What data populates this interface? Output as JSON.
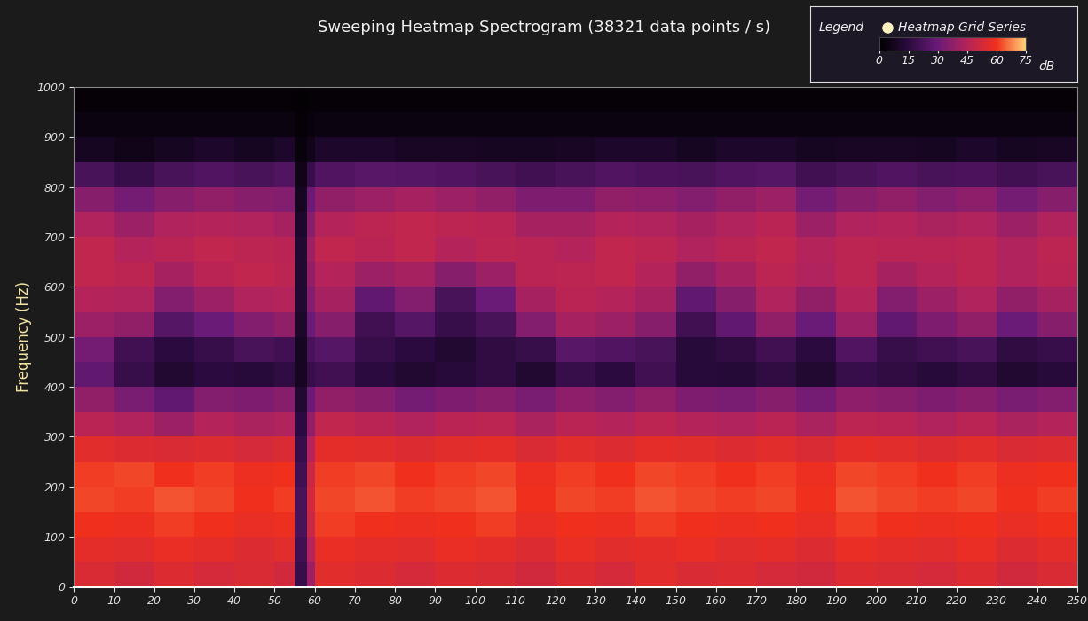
{
  "chart_data": {
    "type": "heatmap",
    "title": "Sweeping Heatmap Spectrogram (38321 data points / s)",
    "y_label": "Frequency (Hz)",
    "xlim": [
      0,
      250
    ],
    "ylim": [
      0,
      1000
    ],
    "xticks": [
      0,
      10,
      20,
      30,
      40,
      50,
      60,
      70,
      80,
      90,
      100,
      110,
      120,
      130,
      140,
      150,
      160,
      170,
      180,
      190,
      200,
      210,
      220,
      230,
      240,
      250
    ],
    "yticks": [
      0,
      100,
      200,
      300,
      400,
      500,
      600,
      700,
      800,
      900,
      1000
    ],
    "legend_title": "Legend",
    "series": [
      {
        "name": "Heatmap Grid Series"
      }
    ],
    "colorbar": {
      "range": [
        0,
        75
      ],
      "ticks": [
        0,
        15,
        30,
        45,
        60,
        75
      ],
      "label": "dB"
    },
    "x_edges": [
      0,
      10,
      20,
      30,
      40,
      50,
      55,
      58,
      60,
      70,
      80,
      90,
      100,
      110,
      120,
      130,
      140,
      150,
      160,
      170,
      180,
      190,
      200,
      210,
      220,
      230,
      240,
      250
    ],
    "y_edges": [
      0,
      50,
      100,
      150,
      200,
      250,
      300,
      350,
      400,
      450,
      500,
      550,
      600,
      650,
      700,
      750,
      800,
      850,
      900,
      950,
      1000
    ],
    "cells": [
      [
        54,
        52,
        55,
        53,
        54,
        52,
        18,
        40,
        56,
        55,
        53,
        55,
        54,
        52,
        55,
        53,
        56,
        54,
        55,
        53,
        52,
        55,
        54,
        53,
        55,
        52,
        54
      ],
      [
        57,
        56,
        58,
        57,
        55,
        56,
        20,
        45,
        58,
        57,
        56,
        58,
        57,
        55,
        58,
        56,
        57,
        58,
        56,
        57,
        55,
        58,
        57,
        56,
        58,
        55,
        57
      ],
      [
        60,
        59,
        61,
        60,
        58,
        59,
        22,
        50,
        61,
        60,
        59,
        60,
        61,
        58,
        60,
        59,
        61,
        60,
        59,
        60,
        58,
        61,
        60,
        59,
        60,
        58,
        60
      ],
      [
        62,
        61,
        63,
        62,
        60,
        61,
        22,
        52,
        62,
        63,
        61,
        62,
        63,
        60,
        62,
        61,
        63,
        62,
        61,
        62,
        60,
        63,
        62,
        61,
        62,
        60,
        61
      ],
      [
        61,
        62,
        60,
        61,
        59,
        60,
        20,
        50,
        61,
        62,
        60,
        61,
        62,
        59,
        61,
        60,
        62,
        61,
        60,
        61,
        59,
        62,
        61,
        60,
        61,
        59,
        60
      ],
      [
        56,
        55,
        54,
        55,
        53,
        54,
        18,
        45,
        57,
        56,
        55,
        56,
        57,
        54,
        56,
        55,
        57,
        56,
        55,
        56,
        54,
        57,
        56,
        55,
        56,
        54,
        55
      ],
      [
        46,
        44,
        40,
        45,
        43,
        44,
        15,
        38,
        48,
        46,
        44,
        46,
        47,
        43,
        46,
        45,
        47,
        45,
        44,
        46,
        43,
        47,
        46,
        44,
        46,
        43,
        45
      ],
      [
        38,
        33,
        28,
        35,
        34,
        36,
        12,
        30,
        38,
        36,
        32,
        34,
        36,
        33,
        37,
        35,
        38,
        34,
        33,
        36,
        32,
        37,
        36,
        34,
        36,
        33,
        35
      ],
      [
        28,
        18,
        12,
        15,
        14,
        16,
        8,
        18,
        20,
        15,
        12,
        14,
        16,
        12,
        18,
        15,
        20,
        14,
        13,
        16,
        12,
        18,
        16,
        14,
        16,
        12,
        14
      ],
      [
        32,
        20,
        15,
        18,
        22,
        20,
        8,
        22,
        25,
        18,
        15,
        12,
        16,
        18,
        26,
        24,
        22,
        14,
        16,
        20,
        15,
        24,
        18,
        20,
        22,
        16,
        18
      ],
      [
        40,
        38,
        25,
        30,
        35,
        38,
        10,
        30,
        36,
        20,
        25,
        18,
        22,
        35,
        42,
        40,
        36,
        20,
        28,
        38,
        30,
        40,
        28,
        34,
        38,
        30,
        36
      ],
      [
        45,
        44,
        35,
        40,
        44,
        45,
        12,
        35,
        42,
        28,
        35,
        22,
        30,
        42,
        46,
        45,
        42,
        28,
        36,
        44,
        38,
        45,
        35,
        40,
        44,
        38,
        42
      ],
      [
        48,
        47,
        42,
        46,
        48,
        47,
        12,
        38,
        45,
        40,
        42,
        36,
        40,
        46,
        47,
        48,
        45,
        38,
        42,
        47,
        44,
        47,
        42,
        45,
        47,
        44,
        46
      ],
      [
        48,
        45,
        46,
        48,
        47,
        46,
        12,
        40,
        48,
        46,
        48,
        45,
        47,
        46,
        45,
        48,
        47,
        44,
        46,
        48,
        45,
        47,
        46,
        46,
        47,
        44,
        47
      ],
      [
        44,
        40,
        44,
        45,
        44,
        42,
        10,
        36,
        45,
        47,
        48,
        47,
        46,
        42,
        42,
        45,
        44,
        42,
        44,
        46,
        40,
        44,
        45,
        43,
        44,
        40,
        44
      ],
      [
        36,
        32,
        36,
        38,
        36,
        35,
        8,
        30,
        38,
        40,
        42,
        40,
        38,
        34,
        34,
        38,
        37,
        35,
        38,
        40,
        32,
        36,
        38,
        35,
        37,
        32,
        36
      ],
      [
        22,
        18,
        22,
        24,
        22,
        24,
        6,
        18,
        24,
        26,
        25,
        24,
        22,
        20,
        22,
        24,
        23,
        22,
        24,
        25,
        20,
        22,
        24,
        22,
        23,
        20,
        22
      ],
      [
        8,
        6,
        8,
        10,
        8,
        10,
        3,
        6,
        10,
        10,
        9,
        9,
        8,
        8,
        9,
        10,
        10,
        8,
        10,
        10,
        8,
        9,
        9,
        8,
        10,
        8,
        9
      ],
      [
        4,
        4,
        4,
        4,
        4,
        4,
        2,
        3,
        4,
        4,
        4,
        4,
        4,
        4,
        4,
        4,
        4,
        4,
        4,
        4,
        4,
        4,
        4,
        4,
        4,
        4,
        4
      ],
      [
        2,
        2,
        2,
        2,
        2,
        2,
        1,
        2,
        2,
        2,
        2,
        2,
        2,
        2,
        2,
        2,
        2,
        2,
        2,
        2,
        2,
        2,
        2,
        2,
        2,
        2,
        2
      ]
    ]
  }
}
